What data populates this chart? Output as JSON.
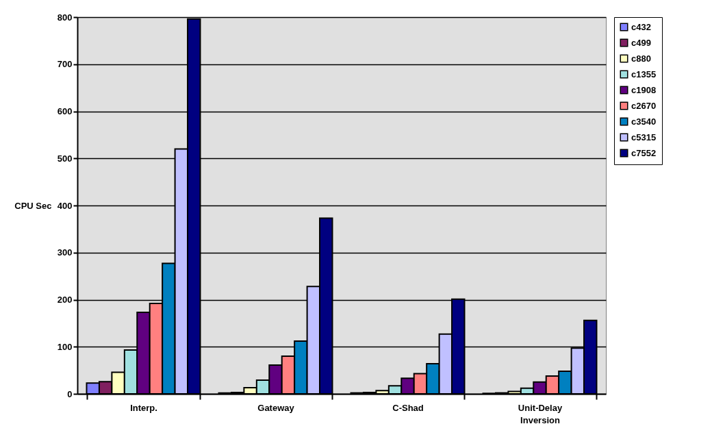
{
  "chart_data": {
    "type": "bar",
    "ylabel": "CPU Sec",
    "categories": [
      "Interp.",
      "Gateway",
      "C-Shad",
      "Unit-Delay Inversion"
    ],
    "series": [
      {
        "name": "c432",
        "color": "#8080ff",
        "values": [
          23,
          2,
          2,
          1
        ]
      },
      {
        "name": "c499",
        "color": "#802060",
        "values": [
          26,
          3,
          3,
          2
        ]
      },
      {
        "name": "c880",
        "color": "#ffffc0",
        "values": [
          46,
          13,
          7,
          5
        ]
      },
      {
        "name": "c1355",
        "color": "#a0e0e0",
        "values": [
          93,
          29,
          17,
          12
        ]
      },
      {
        "name": "c1908",
        "color": "#600080",
        "values": [
          173,
          61,
          33,
          25
        ]
      },
      {
        "name": "c2670",
        "color": "#ff8080",
        "values": [
          192,
          80,
          43,
          38
        ]
      },
      {
        "name": "c3540",
        "color": "#0080c0",
        "values": [
          277,
          112,
          64,
          48
        ]
      },
      {
        "name": "c5315",
        "color": "#c0c0ff",
        "values": [
          520,
          228,
          127,
          97
        ]
      },
      {
        "name": "c7552",
        "color": "#000080",
        "values": [
          796,
          373,
          201,
          156
        ]
      }
    ],
    "ylim": [
      0,
      800
    ],
    "yticks": [
      0,
      100,
      200,
      300,
      400,
      500,
      600,
      700,
      800
    ],
    "grid": "y",
    "legend": "right"
  }
}
